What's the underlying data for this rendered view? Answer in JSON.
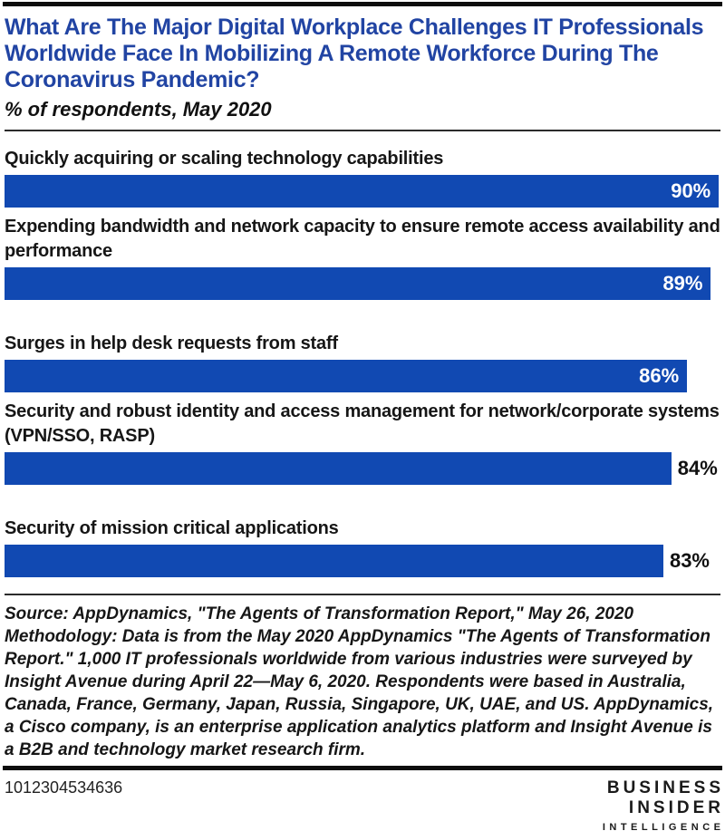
{
  "header": {
    "title": "What Are The Major Digital Workplace Challenges IT Professionals Worldwide Face In Mobilizing A Remote Workforce During The Coronavirus Pandemic?",
    "subtitle": "% of respondents, May 2020"
  },
  "chart_data": {
    "type": "bar",
    "orientation": "horizontal",
    "title": "What Are The Major Digital Workplace Challenges IT Professionals Worldwide Face In Mobilizing A Remote Workforce During The Coronavirus Pandemic?",
    "subtitle": "% of respondents, May 2020",
    "unit": "% of respondents",
    "grid": false,
    "legend": false,
    "axis_max": 90.2,
    "bar_color": "#1149b2",
    "categories": [
      "Quickly acquiring or scaling technology capabilities",
      "Expending bandwidth and network capacity to ensure remote access availability and performance",
      "Surges in help desk requests from staff",
      "Security and robust identity and access management for network/corporate systems (VPN/SSO, RASP)",
      "Security of mission critical applications"
    ],
    "values": [
      90,
      89,
      86,
      84,
      83
    ],
    "bars": [
      {
        "category": "Quickly acquiring or scaling technology capabilities",
        "value": 90,
        "display": "90%",
        "value_inside": true
      },
      {
        "category": "Expending bandwidth and network capacity to ensure remote access availability and performance",
        "value": 89,
        "display": "89%",
        "value_inside": true
      },
      {
        "category": "Surges in help desk requests from staff",
        "value": 86,
        "display": "86%",
        "value_inside": true
      },
      {
        "category": "Security and robust identity and access management for network/corporate systems (VPN/SSO, RASP)",
        "value": 84,
        "display": "84%",
        "value_inside": false
      },
      {
        "category": "Security of mission critical applications",
        "value": 83,
        "display": "83%",
        "value_inside": false
      }
    ]
  },
  "footer": {
    "source_text": "Source: AppDynamics, \"The Agents of Transformation Report,\" May 26, 2020 Methodology: Data is from the May 2020 AppDynamics \"The Agents of Transformation Report.\" 1,000 IT professionals worldwide from various industries were surveyed by Insight Avenue during April 22—May 6, 2020. Respondents were based in Australia, Canada, France, Germany, Japan, Russia, Singapore, UK, UAE, and US. AppDynamics, a Cisco company, is an enterprise application analytics platform and Insight Avenue is a B2B and technology market research firm.",
    "tracking_number": "1012304534636",
    "logo": {
      "line1": "BUSINESS",
      "line2": "INSIDER",
      "line3": "INTELLIGENCE"
    }
  },
  "colors": {
    "title_blue": "#2144a3",
    "bar_blue": "#1149b2",
    "rule_black": "#0d0d0d"
  }
}
